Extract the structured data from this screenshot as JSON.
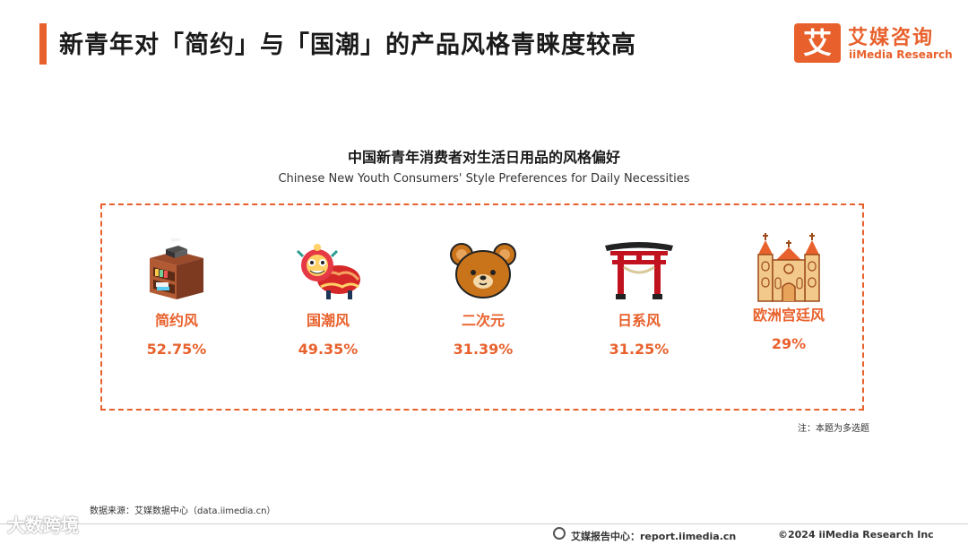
{
  "header": {
    "title": "新青年对「简约」与「国潮」的产品风格青睐度较高",
    "logo_mark": "艾",
    "logo_cn": "艾媒咨询",
    "logo_en": "iiMedia Research"
  },
  "chart_data": {
    "type": "table",
    "title": "中国新青年消费者对生活日用品的风格偏好",
    "subtitle": "Chinese New Youth Consumers' Style Preferences for Daily Necessities",
    "categories": [
      "简约风",
      "国潮风",
      "二次元",
      "日系风",
      "欧洲宫廷风"
    ],
    "values": [
      52.75,
      49.35,
      31.39,
      31.25,
      29
    ],
    "value_labels": [
      "52.75%",
      "49.35%",
      "31.39%",
      "31.25%",
      "29%"
    ],
    "icons": [
      "bookshelf-printer-icon",
      "lion-dance-icon",
      "bear-face-icon",
      "torii-gate-icon",
      "cathedral-icon"
    ],
    "accent_color": "#e8612c"
  },
  "note": "注：本题为多选题",
  "source": "数据来源：艾媒数据中心（data.iimedia.cn）",
  "footer": {
    "center": "艾媒报告中心：report.iimedia.cn",
    "right": "©2024  iiMedia Research  Inc"
  },
  "watermark": "大数跨境"
}
